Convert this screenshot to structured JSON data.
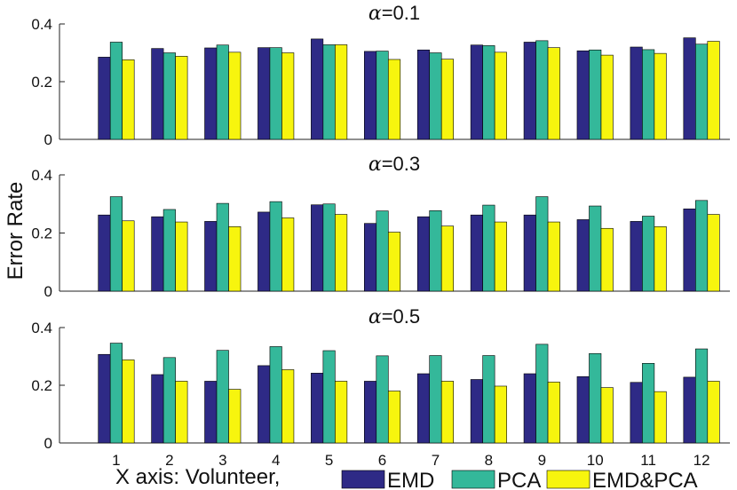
{
  "ylabel": "Error Rate",
  "xlabel": "X axis: Volunteer,",
  "legend": [
    {
      "label": "EMD",
      "color": "#2e2a86"
    },
    {
      "label": "PCA",
      "color": "#34b89a"
    },
    {
      "label": "EMD&PCA",
      "color": "#f7f50e"
    }
  ],
  "chart_data": [
    {
      "type": "bar",
      "title_symbol": "α",
      "title_value": "=0.1",
      "categories": [
        "1",
        "2",
        "3",
        "4",
        "5",
        "6",
        "7",
        "8",
        "9",
        "10",
        "11",
        "12"
      ],
      "ylim": [
        0,
        0.4
      ],
      "yticks": [
        "0",
        "0.2",
        "0.4"
      ],
      "series": [
        {
          "name": "EMD",
          "values": [
            0.285,
            0.315,
            0.317,
            0.318,
            0.348,
            0.305,
            0.31,
            0.327,
            0.337,
            0.307,
            0.32,
            0.352
          ]
        },
        {
          "name": "PCA",
          "values": [
            0.337,
            0.3,
            0.327,
            0.318,
            0.328,
            0.306,
            0.3,
            0.325,
            0.342,
            0.31,
            0.311,
            0.33
          ]
        },
        {
          "name": "EMD&PCA",
          "values": [
            0.276,
            0.288,
            0.302,
            0.3,
            0.328,
            0.277,
            0.278,
            0.302,
            0.318,
            0.292,
            0.298,
            0.34
          ]
        }
      ]
    },
    {
      "type": "bar",
      "title_symbol": "α",
      "title_value": "=0.3",
      "categories": [
        "1",
        "2",
        "3",
        "4",
        "5",
        "6",
        "7",
        "8",
        "9",
        "10",
        "11",
        "12"
      ],
      "ylim": [
        0,
        0.4
      ],
      "yticks": [
        "0",
        "0.2",
        "0.4"
      ],
      "series": [
        {
          "name": "EMD",
          "values": [
            0.262,
            0.256,
            0.24,
            0.272,
            0.297,
            0.233,
            0.256,
            0.262,
            0.262,
            0.246,
            0.24,
            0.283
          ]
        },
        {
          "name": "PCA",
          "values": [
            0.325,
            0.281,
            0.302,
            0.308,
            0.3,
            0.276,
            0.277,
            0.296,
            0.325,
            0.293,
            0.258,
            0.312
          ]
        },
        {
          "name": "EMD&PCA",
          "values": [
            0.242,
            0.238,
            0.222,
            0.252,
            0.264,
            0.203,
            0.224,
            0.238,
            0.238,
            0.216,
            0.222,
            0.264
          ]
        }
      ]
    },
    {
      "type": "bar",
      "title_symbol": "α",
      "title_value": "=0.5",
      "categories": [
        "1",
        "2",
        "3",
        "4",
        "5",
        "6",
        "7",
        "8",
        "9",
        "10",
        "11",
        "12"
      ],
      "ylim": [
        0,
        0.4
      ],
      "yticks": [
        "0",
        "0.2",
        "0.4"
      ],
      "series": [
        {
          "name": "EMD",
          "values": [
            0.307,
            0.237,
            0.214,
            0.268,
            0.242,
            0.214,
            0.24,
            0.22,
            0.24,
            0.23,
            0.21,
            0.228
          ]
        },
        {
          "name": "PCA",
          "values": [
            0.346,
            0.296,
            0.321,
            0.334,
            0.32,
            0.302,
            0.303,
            0.303,
            0.342,
            0.31,
            0.276,
            0.326
          ]
        },
        {
          "name": "EMD&PCA",
          "values": [
            0.288,
            0.214,
            0.186,
            0.254,
            0.214,
            0.18,
            0.214,
            0.197,
            0.211,
            0.192,
            0.178,
            0.214
          ]
        }
      ]
    }
  ]
}
